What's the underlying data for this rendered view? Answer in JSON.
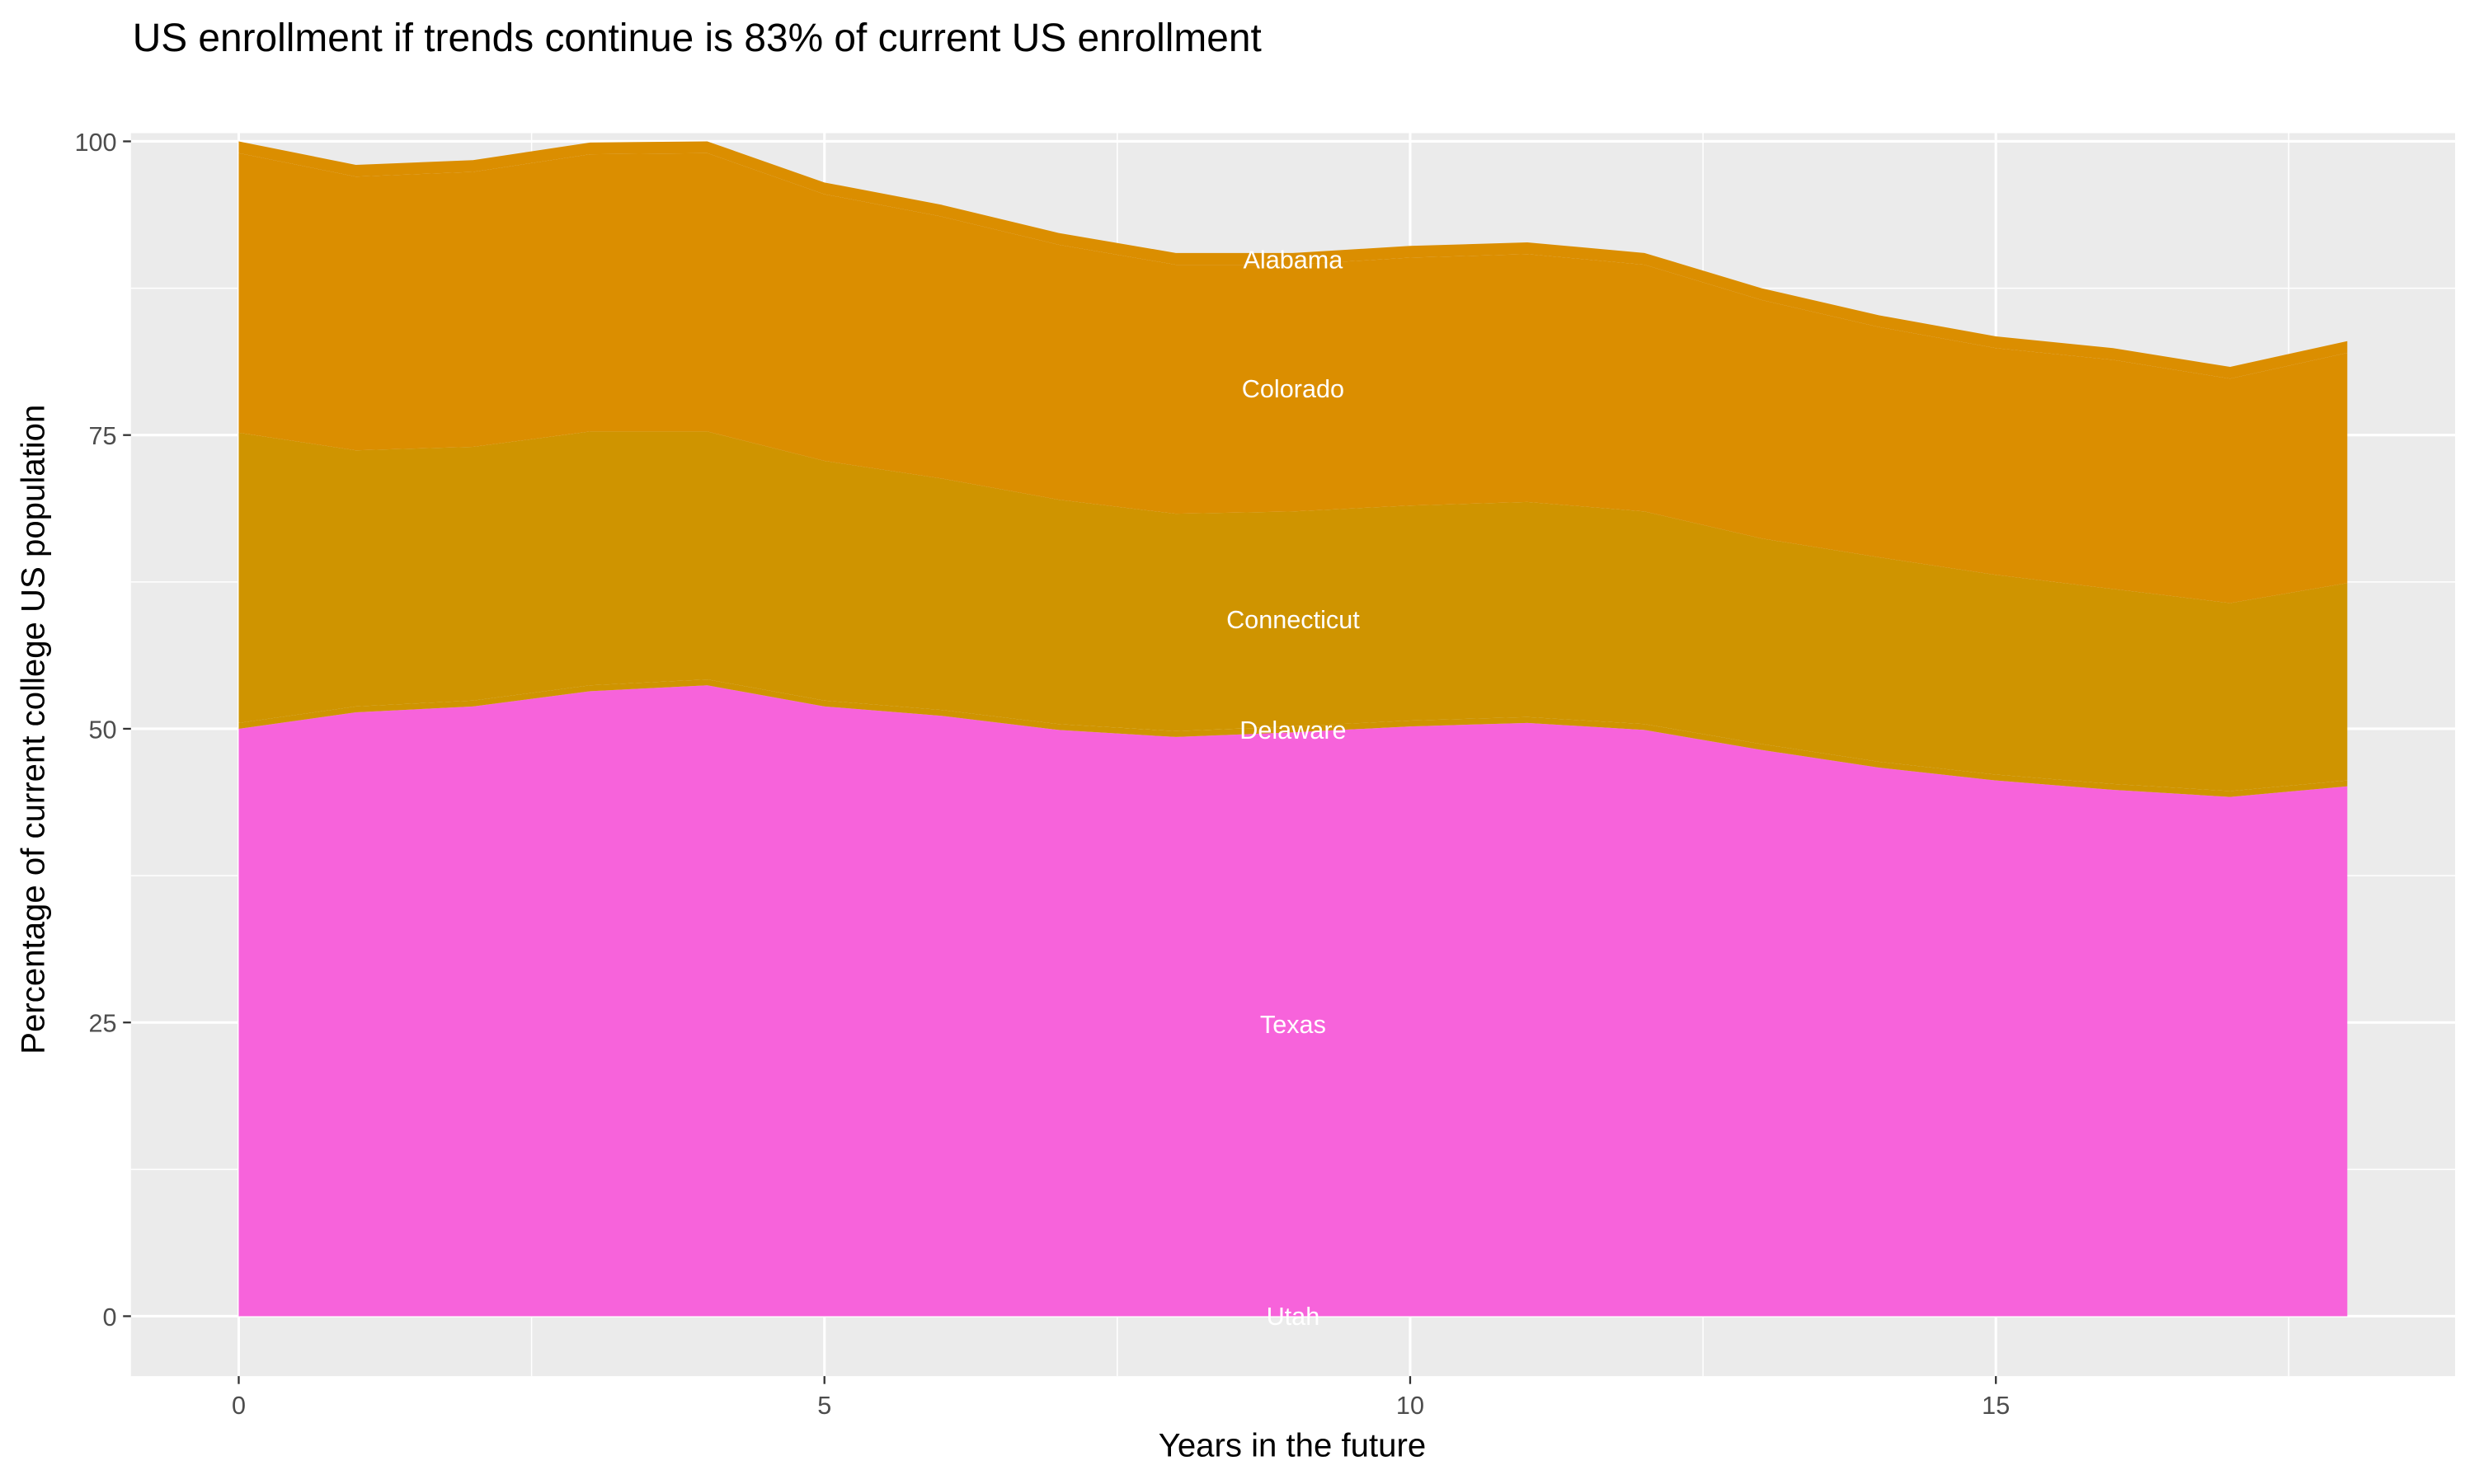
{
  "chart_data": {
    "type": "area",
    "stacked": true,
    "title": "US enrollment if trends continue is 83% of current US enrollment",
    "xlabel": "Years in the future",
    "ylabel": "Percentage of current college US population",
    "xlim": [
      -0.92,
      18.92
    ],
    "ylim": [
      -5.1,
      100.7
    ],
    "x_ticks": [
      0,
      5,
      10,
      15
    ],
    "y_ticks": [
      0,
      25,
      50,
      75,
      100
    ],
    "grid": true,
    "legend": "none",
    "panel_background": "#EBEBEB",
    "x": [
      0,
      1,
      2,
      3,
      4,
      5,
      6,
      7,
      8,
      9,
      10,
      11,
      12,
      13,
      14,
      15,
      16,
      17,
      18
    ],
    "label_x": 9,
    "series": [
      {
        "name": "Utah",
        "color": "#F763DB",
        "values": [
          0.1,
          0.1,
          0.1,
          0.1,
          0.1,
          0.1,
          0.1,
          0.1,
          0.1,
          0.1,
          0.1,
          0.1,
          0.1,
          0.1,
          0.1,
          0.1,
          0.1,
          0.1,
          0.1
        ]
      },
      {
        "name": "Texas",
        "color": "#F763DB",
        "values": [
          49.9,
          51.3,
          51.8,
          53.1,
          53.6,
          51.8,
          51.0,
          49.8,
          49.2,
          49.6,
          50.1,
          50.4,
          49.8,
          48.1,
          46.6,
          45.5,
          44.7,
          44.1,
          45.0
        ]
      },
      {
        "name": "Delaware",
        "color": "#CF9400",
        "values": [
          0.5,
          0.5,
          0.5,
          0.5,
          0.5,
          0.5,
          0.5,
          0.5,
          0.5,
          0.5,
          0.5,
          0.5,
          0.5,
          0.5,
          0.5,
          0.5,
          0.5,
          0.5,
          0.5
        ]
      },
      {
        "name": "Connecticut",
        "color": "#CF9400",
        "values": [
          24.7,
          21.8,
          21.6,
          21.6,
          21.1,
          20.4,
          19.7,
          19.1,
          18.5,
          18.3,
          18.3,
          18.3,
          18.1,
          17.5,
          17.4,
          17.0,
          16.6,
          16.0,
          16.8
        ]
      },
      {
        "name": "Colorado",
        "color": "#DB8E00",
        "values": [
          23.8,
          23.3,
          23.4,
          23.6,
          23.7,
          22.7,
          22.3,
          21.7,
          21.2,
          21.0,
          21.1,
          21.1,
          21.0,
          20.3,
          19.6,
          19.3,
          19.5,
          19.1,
          19.6
        ]
      },
      {
        "name": "Alabama",
        "color": "#DB8E00",
        "values": [
          1.0,
          1.0,
          1.0,
          1.0,
          1.0,
          1.0,
          1.0,
          1.0,
          1.0,
          1.0,
          1.0,
          1.0,
          1.0,
          1.0,
          1.0,
          1.0,
          1.0,
          1.0,
          1.0
        ]
      }
    ]
  }
}
